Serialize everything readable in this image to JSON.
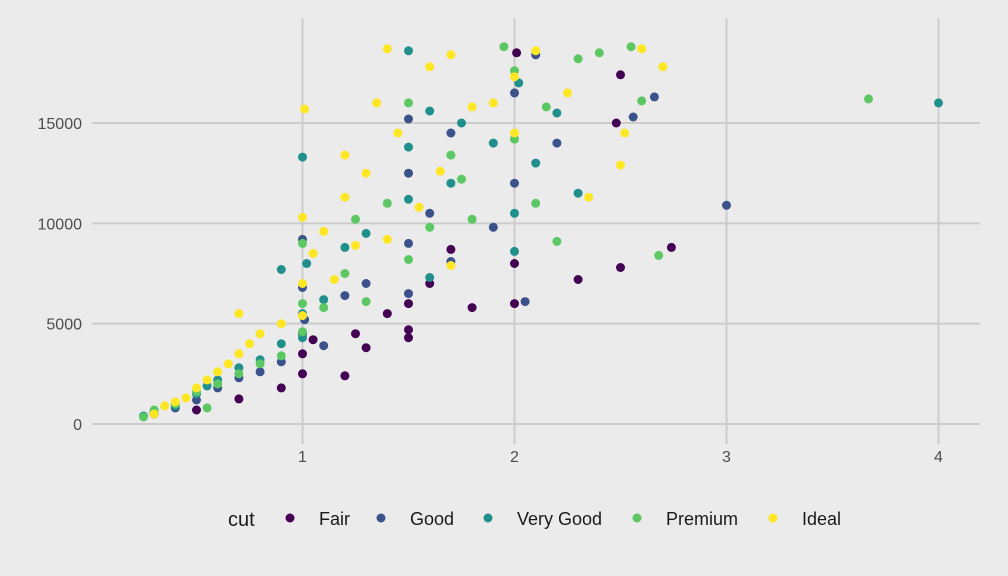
{
  "chart_data": {
    "type": "scatter",
    "title": "",
    "xlabel": "",
    "ylabel": "",
    "xlim": [
      0.1,
      4.2
    ],
    "ylim": [
      -500,
      19500
    ],
    "xticks": [
      1,
      2,
      3,
      4
    ],
    "yticks": [
      0,
      5000,
      10000,
      15000
    ],
    "grid": true,
    "legend": {
      "title": "cut",
      "position": "bottom"
    },
    "series": [
      {
        "name": "Fair",
        "color": "#440154",
        "points": [
          [
            0.7,
            1250
          ],
          [
            0.9,
            1800
          ],
          [
            1.0,
            3500
          ],
          [
            1.0,
            2500
          ],
          [
            1.05,
            4200
          ],
          [
            1.2,
            2400
          ],
          [
            1.25,
            4500
          ],
          [
            1.3,
            3800
          ],
          [
            1.4,
            5500
          ],
          [
            1.5,
            4300
          ],
          [
            1.5,
            4700
          ],
          [
            1.5,
            6000
          ],
          [
            1.6,
            7000
          ],
          [
            1.7,
            8700
          ],
          [
            1.8,
            5800
          ],
          [
            2.0,
            8000
          ],
          [
            2.0,
            6000
          ],
          [
            2.01,
            18500
          ],
          [
            2.3,
            7200
          ],
          [
            2.5,
            7800
          ],
          [
            2.5,
            17400
          ],
          [
            2.48,
            15000
          ],
          [
            2.74,
            8800
          ],
          [
            0.5,
            700
          ],
          [
            0.3,
            500
          ]
        ]
      },
      {
        "name": "Good",
        "color": "#3b528b",
        "points": [
          [
            0.3,
            550
          ],
          [
            0.4,
            800
          ],
          [
            0.5,
            1200
          ],
          [
            0.6,
            1800
          ],
          [
            0.7,
            2300
          ],
          [
            0.8,
            2600
          ],
          [
            0.9,
            3100
          ],
          [
            1.0,
            4500
          ],
          [
            1.0,
            6800
          ],
          [
            1.0,
            9200
          ],
          [
            1.01,
            5200
          ],
          [
            1.1,
            3900
          ],
          [
            1.2,
            6400
          ],
          [
            1.3,
            7000
          ],
          [
            1.5,
            6500
          ],
          [
            1.5,
            9000
          ],
          [
            1.5,
            12500
          ],
          [
            1.5,
            15200
          ],
          [
            1.6,
            10500
          ],
          [
            1.7,
            14500
          ],
          [
            1.7,
            8100
          ],
          [
            1.9,
            9800
          ],
          [
            2.0,
            12000
          ],
          [
            2.0,
            16500
          ],
          [
            2.05,
            6100
          ],
          [
            2.1,
            18400
          ],
          [
            2.2,
            14000
          ],
          [
            2.56,
            15300
          ],
          [
            2.66,
            16300
          ],
          [
            3.0,
            10900
          ]
        ]
      },
      {
        "name": "Very Good",
        "color": "#21908c",
        "points": [
          [
            0.25,
            400
          ],
          [
            0.3,
            600
          ],
          [
            0.4,
            900
          ],
          [
            0.5,
            1500
          ],
          [
            0.55,
            1900
          ],
          [
            0.6,
            2200
          ],
          [
            0.7,
            2800
          ],
          [
            0.8,
            3200
          ],
          [
            0.9,
            4000
          ],
          [
            0.9,
            7700
          ],
          [
            1.0,
            4300
          ],
          [
            1.0,
            5500
          ],
          [
            1.0,
            13300
          ],
          [
            1.02,
            8000
          ],
          [
            1.1,
            6200
          ],
          [
            1.2,
            8800
          ],
          [
            1.3,
            9500
          ],
          [
            1.5,
            11200
          ],
          [
            1.5,
            13800
          ],
          [
            1.5,
            18600
          ],
          [
            1.6,
            7300
          ],
          [
            1.6,
            15600
          ],
          [
            1.7,
            12000
          ],
          [
            1.75,
            15000
          ],
          [
            1.9,
            14000
          ],
          [
            2.0,
            10500
          ],
          [
            2.02,
            17000
          ],
          [
            2.1,
            13000
          ],
          [
            2.2,
            15500
          ],
          [
            2.3,
            11500
          ],
          [
            2.0,
            8600
          ],
          [
            4.0,
            16000
          ]
        ]
      },
      {
        "name": "Premium",
        "color": "#5dc863",
        "points": [
          [
            0.25,
            350
          ],
          [
            0.3,
            700
          ],
          [
            0.4,
            1000
          ],
          [
            0.5,
            1600
          ],
          [
            0.55,
            800
          ],
          [
            0.6,
            2000
          ],
          [
            0.7,
            2500
          ],
          [
            0.8,
            3000
          ],
          [
            0.9,
            3400
          ],
          [
            1.0,
            4600
          ],
          [
            1.0,
            6000
          ],
          [
            1.0,
            9000
          ],
          [
            1.1,
            5800
          ],
          [
            1.2,
            7500
          ],
          [
            1.25,
            10200
          ],
          [
            1.3,
            6100
          ],
          [
            1.4,
            11000
          ],
          [
            1.5,
            8200
          ],
          [
            1.5,
            16000
          ],
          [
            1.6,
            9800
          ],
          [
            1.7,
            13400
          ],
          [
            1.75,
            12200
          ],
          [
            1.8,
            10200
          ],
          [
            1.95,
            18800
          ],
          [
            2.0,
            14200
          ],
          [
            2.0,
            17600
          ],
          [
            2.1,
            11000
          ],
          [
            2.15,
            15800
          ],
          [
            2.2,
            9100
          ],
          [
            2.3,
            18200
          ],
          [
            2.4,
            18500
          ],
          [
            2.55,
            18800
          ],
          [
            2.6,
            16100
          ],
          [
            2.68,
            8400
          ],
          [
            3.67,
            16200
          ]
        ]
      },
      {
        "name": "Ideal",
        "color": "#fde725",
        "points": [
          [
            0.3,
            500
          ],
          [
            0.35,
            900
          ],
          [
            0.4,
            1100
          ],
          [
            0.45,
            1300
          ],
          [
            0.5,
            1800
          ],
          [
            0.55,
            2200
          ],
          [
            0.6,
            2600
          ],
          [
            0.65,
            3000
          ],
          [
            0.7,
            3500
          ],
          [
            0.7,
            5500
          ],
          [
            0.75,
            4000
          ],
          [
            0.8,
            4500
          ],
          [
            0.9,
            5000
          ],
          [
            1.0,
            5400
          ],
          [
            1.0,
            7000
          ],
          [
            1.0,
            10300
          ],
          [
            1.01,
            15700
          ],
          [
            1.05,
            8500
          ],
          [
            1.1,
            9600
          ],
          [
            1.15,
            7200
          ],
          [
            1.2,
            11300
          ],
          [
            1.2,
            13400
          ],
          [
            1.25,
            8900
          ],
          [
            1.3,
            12500
          ],
          [
            1.35,
            16000
          ],
          [
            1.4,
            9200
          ],
          [
            1.4,
            18700
          ],
          [
            1.45,
            14500
          ],
          [
            1.55,
            10800
          ],
          [
            1.6,
            17800
          ],
          [
            1.65,
            12600
          ],
          [
            1.7,
            7900
          ],
          [
            1.7,
            18400
          ],
          [
            1.8,
            15800
          ],
          [
            1.9,
            16000
          ],
          [
            2.0,
            14500
          ],
          [
            2.0,
            17300
          ],
          [
            2.1,
            18600
          ],
          [
            2.25,
            16500
          ],
          [
            2.35,
            11300
          ],
          [
            2.5,
            12900
          ],
          [
            2.52,
            14500
          ],
          [
            2.6,
            18700
          ],
          [
            2.7,
            17800
          ]
        ]
      }
    ]
  }
}
